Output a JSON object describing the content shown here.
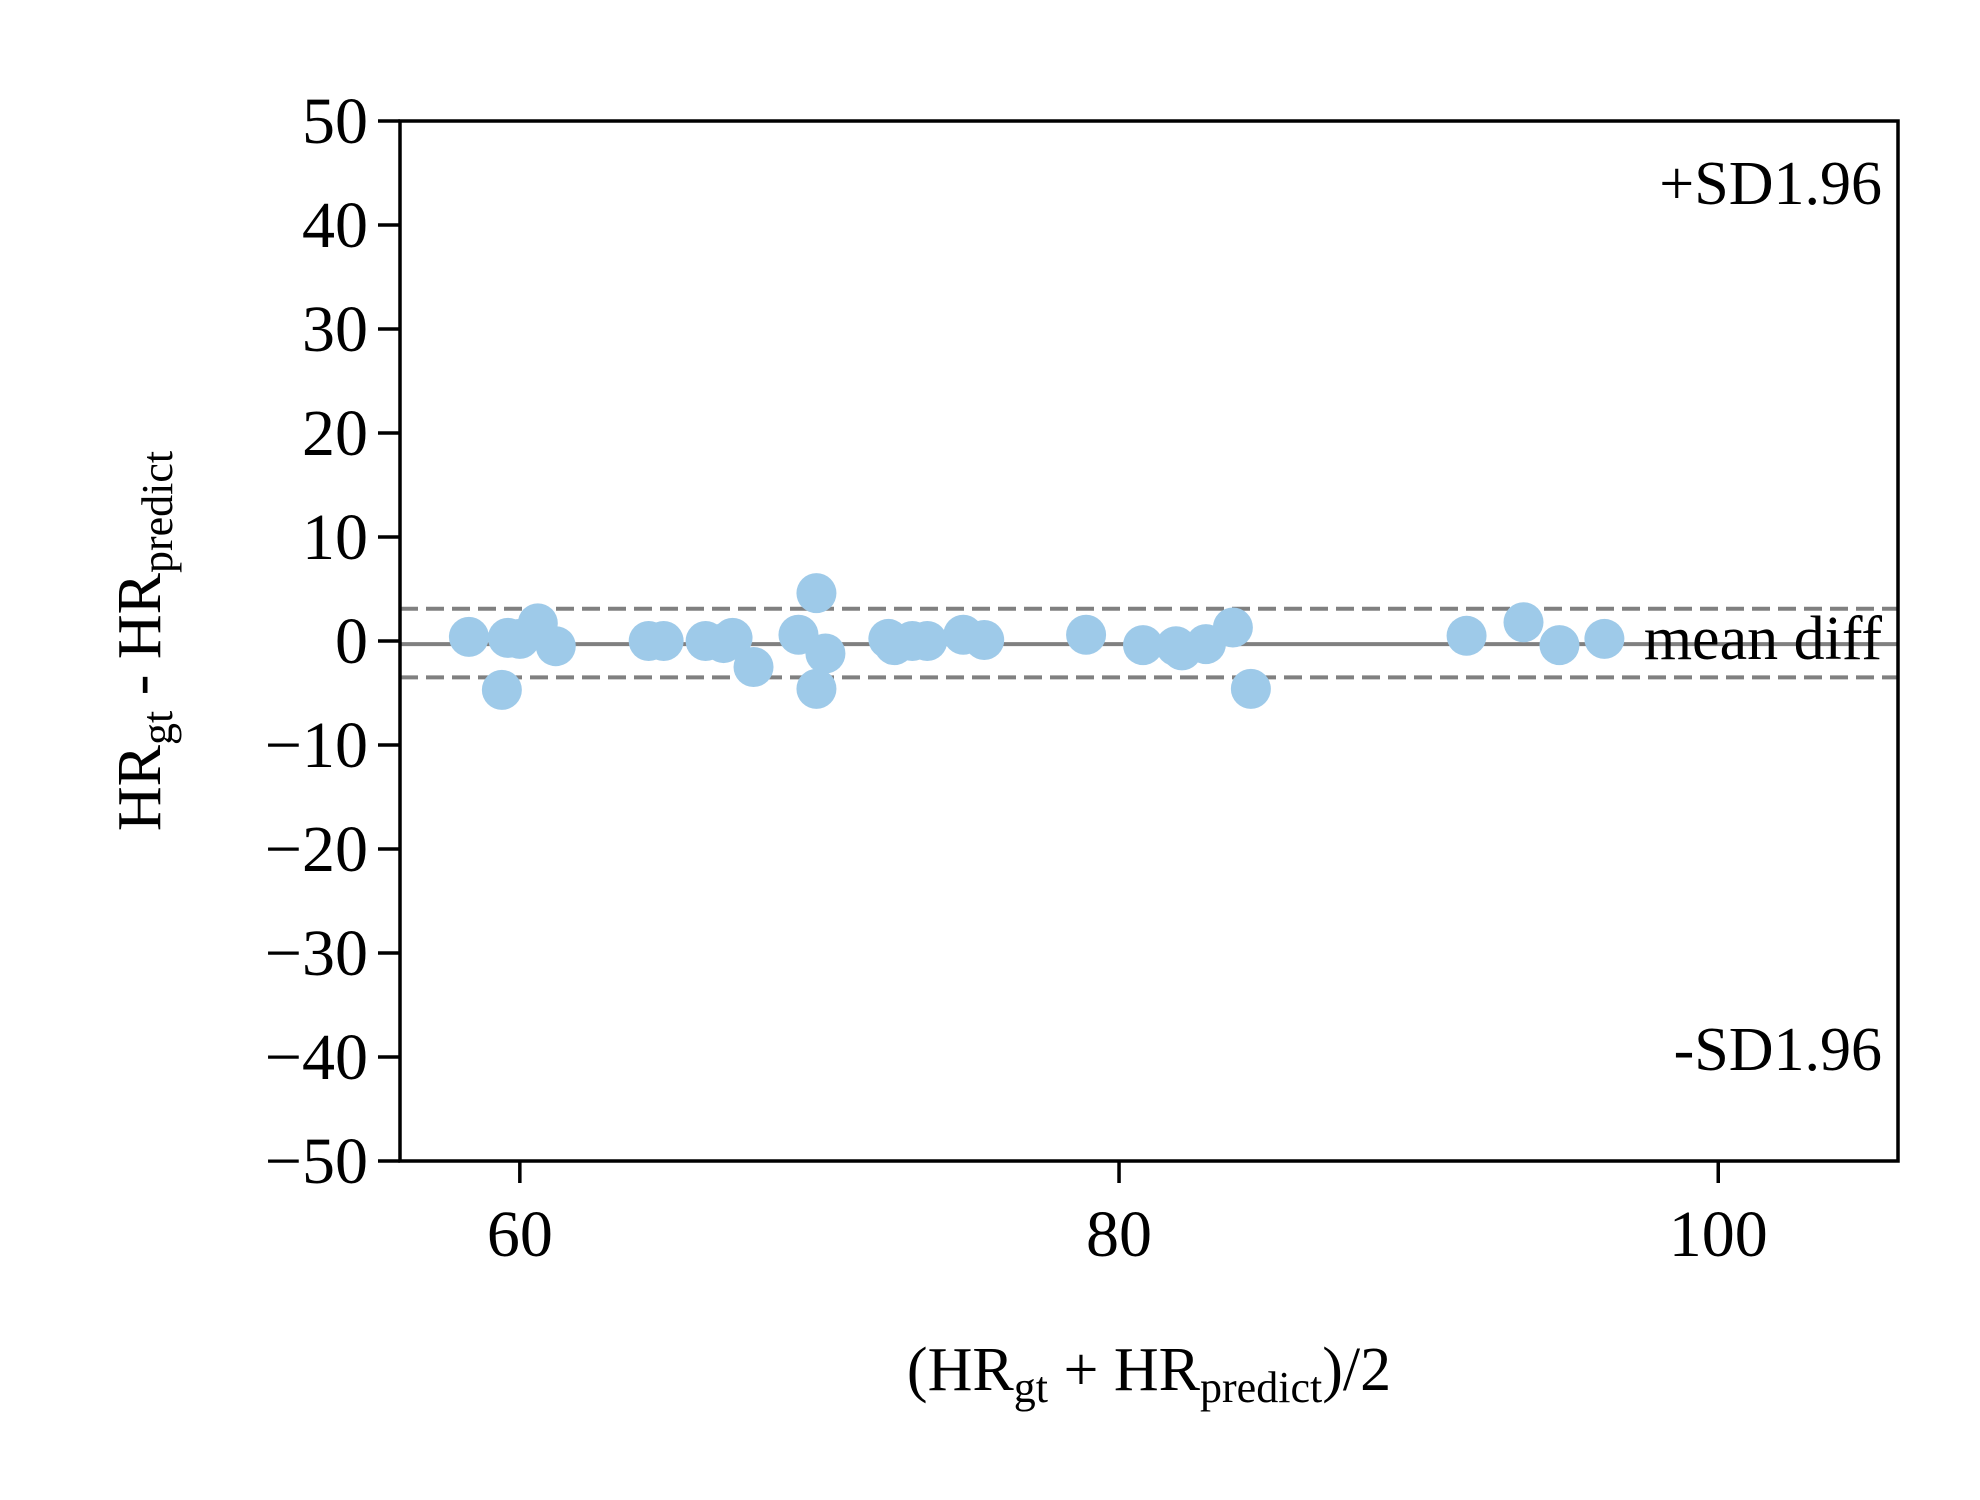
{
  "chart_data": {
    "type": "scatter",
    "title": "",
    "xlabel": {
      "pre": "(HR",
      "sub1": "gt",
      "mid": " + HR",
      "sub2": "predict",
      "post": ")/2"
    },
    "ylabel": {
      "pre": "HR",
      "sub1": "gt",
      "mid": " - HR",
      "sub2": "predict"
    },
    "xlim": [
      56,
      106
    ],
    "ylim": [
      -50,
      50
    ],
    "xticks": [
      60,
      80,
      100
    ],
    "yticks": [
      50,
      40,
      30,
      20,
      10,
      0,
      -10,
      -20,
      -30,
      -40,
      -50
    ],
    "xtick_labels": [
      "60",
      "80",
      "100"
    ],
    "ytick_labels": [
      "50",
      "40",
      "30",
      "20",
      "10",
      "0",
      "−10",
      "−20",
      "−30",
      "−40",
      "−50"
    ],
    "grid": false,
    "colors": {
      "points": "#9ecae9",
      "lines": "#808080",
      "frame": "#000000"
    },
    "mean_diff": -0.3,
    "upper_loa": 3.1,
    "lower_loa": -3.5,
    "annotations": {
      "upper": "+SD1.96",
      "mean": "mean diff",
      "lower": "-SD1.96"
    },
    "points": [
      {
        "x": 58.3,
        "y": 0.4
      },
      {
        "x": 59.4,
        "y": -4.7
      },
      {
        "x": 59.6,
        "y": 0.3
      },
      {
        "x": 60.0,
        "y": 0.2
      },
      {
        "x": 60.6,
        "y": 1.7
      },
      {
        "x": 61.2,
        "y": -0.5
      },
      {
        "x": 64.3,
        "y": 0.0
      },
      {
        "x": 64.8,
        "y": 0.0
      },
      {
        "x": 66.2,
        "y": 0.0
      },
      {
        "x": 66.8,
        "y": -0.2
      },
      {
        "x": 67.1,
        "y": 0.3
      },
      {
        "x": 67.8,
        "y": -2.5
      },
      {
        "x": 69.3,
        "y": 0.6
      },
      {
        "x": 69.9,
        "y": 4.6
      },
      {
        "x": 69.9,
        "y": -4.6
      },
      {
        "x": 70.2,
        "y": -1.2
      },
      {
        "x": 72.3,
        "y": 0.2
      },
      {
        "x": 72.5,
        "y": -0.4
      },
      {
        "x": 73.1,
        "y": 0.0
      },
      {
        "x": 73.6,
        "y": 0.0
      },
      {
        "x": 74.8,
        "y": 0.6
      },
      {
        "x": 75.5,
        "y": 0.1
      },
      {
        "x": 78.9,
        "y": 0.6
      },
      {
        "x": 80.8,
        "y": -0.4
      },
      {
        "x": 81.9,
        "y": -0.5
      },
      {
        "x": 82.1,
        "y": -0.9
      },
      {
        "x": 82.9,
        "y": -0.3
      },
      {
        "x": 83.8,
        "y": 1.3
      },
      {
        "x": 84.4,
        "y": -4.6
      },
      {
        "x": 91.6,
        "y": 0.5
      },
      {
        "x": 93.5,
        "y": 1.8
      },
      {
        "x": 94.7,
        "y": -0.4
      },
      {
        "x": 96.2,
        "y": 0.2
      }
    ]
  }
}
